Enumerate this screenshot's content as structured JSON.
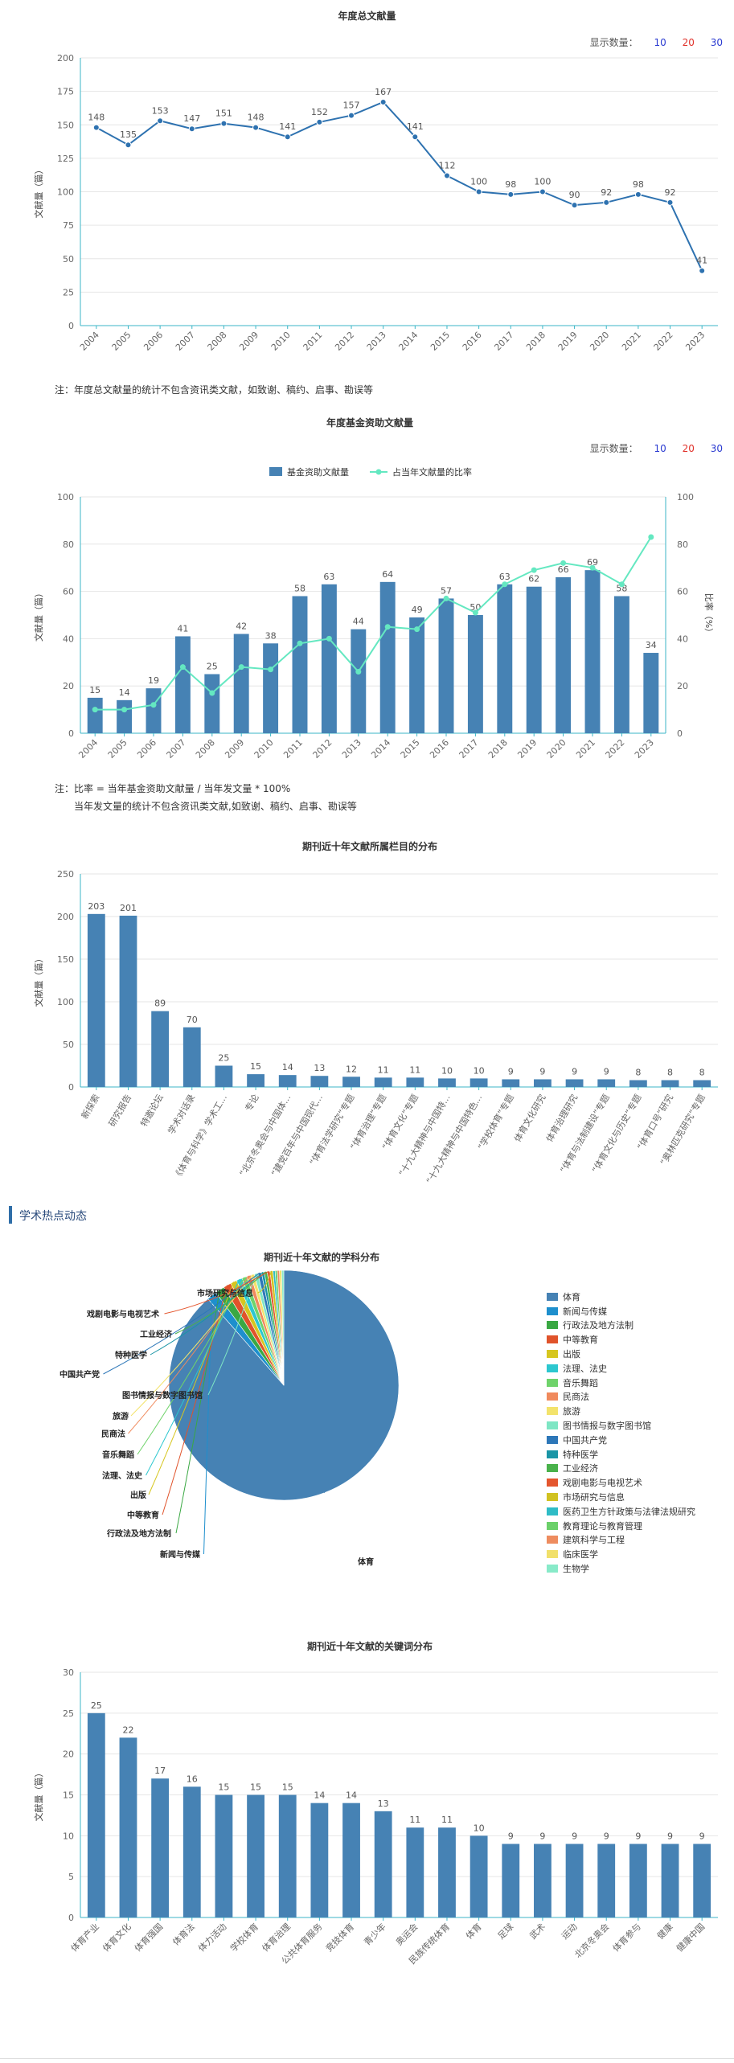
{
  "controls": {
    "count_label": "显示数量：",
    "counts": [
      "10",
      "20",
      "30"
    ],
    "count_colors": [
      "#2b3bd1",
      "#e0322b",
      "#2b3bd1"
    ]
  },
  "notes": {
    "annual": "注：年度总文献量的统计不包含资讯类文献，如致谢、稿约、启事、勘误等",
    "fund_1": "注：比率 = 当年基金资助文献量 / 当年发文量 * 100%",
    "fund_2": "当年发文量的统计不包含资讯类文献,如致谢、稿约、启事、勘误等"
  },
  "section": {
    "title": "学术热点动态"
  },
  "colors": {
    "line": "#2e72b0",
    "bar": "#4682b4",
    "ratio_line": "#64e8c1"
  },
  "chart_data": [
    {
      "id": "annual",
      "type": "line",
      "title": "年度总文献量",
      "ylabel": "文献量（篇）",
      "ylim": [
        0,
        200
      ],
      "yticks": [
        0,
        25,
        50,
        75,
        100,
        125,
        150,
        175,
        200
      ],
      "x": [
        "2004",
        "2005",
        "2006",
        "2007",
        "2008",
        "2009",
        "2010",
        "2011",
        "2012",
        "2013",
        "2014",
        "2015",
        "2016",
        "2017",
        "2018",
        "2019",
        "2020",
        "2021",
        "2022",
        "2023"
      ],
      "series": [
        {
          "values": [
            148,
            135,
            153,
            147,
            151,
            148,
            141,
            152,
            157,
            167,
            141,
            112,
            100,
            98,
            100,
            90,
            92,
            98,
            92,
            41
          ]
        }
      ]
    },
    {
      "id": "fund",
      "type": "bar",
      "title": "年度基金资助文献量",
      "ylabel": "文献量（篇）",
      "y2label": "比率（%）",
      "ylim": [
        0,
        100
      ],
      "y2lim": [
        0,
        100
      ],
      "yticks": [
        0,
        20,
        40,
        60,
        80,
        100
      ],
      "x": [
        "2004",
        "2005",
        "2006",
        "2007",
        "2008",
        "2009",
        "2010",
        "2011",
        "2012",
        "2013",
        "2014",
        "2015",
        "2016",
        "2017",
        "2018",
        "2019",
        "2020",
        "2021",
        "2022",
        "2023"
      ],
      "series": [
        {
          "name": "基金资助文献量",
          "type": "bar",
          "values": [
            15,
            14,
            19,
            41,
            25,
            42,
            38,
            58,
            63,
            44,
            64,
            49,
            57,
            50,
            63,
            62,
            66,
            69,
            58,
            34
          ]
        },
        {
          "name": "占当年文献量的比率",
          "type": "line",
          "axis": "right",
          "values": [
            10,
            10,
            12,
            28,
            17,
            28,
            27,
            38,
            40,
            26,
            45,
            44,
            57,
            51,
            63,
            69,
            72,
            70,
            63,
            83
          ]
        }
      ]
    },
    {
      "id": "column",
      "type": "bar",
      "title": "期刊近十年文献所属栏目的分布",
      "ylabel": "文献量（篇）",
      "ylim": [
        0,
        250
      ],
      "yticks": [
        0,
        50,
        100,
        150,
        200,
        250
      ],
      "categories": [
        "新探索",
        "研究报告",
        "特邀论坛",
        "学术对话录",
        "《体育与科学》学术工...",
        "专论",
        "“北京冬奥会与中国体...",
        "“建党百年与中国现代...",
        "“体育法学研究”专题",
        "“体育治理”专题",
        "“体育文化”专题",
        "“十九大精神与中国特...",
        "“十九大精神与中国特色...",
        "“学校体育”专题",
        "体育文化研究",
        "体育治理研究",
        "“体育与法制建设”专题",
        "“体育文化与历史”专题",
        "“体育口号”研究",
        "“奥林匹克研究”专题"
      ],
      "series": [
        {
          "values": [
            203,
            201,
            89,
            70,
            25,
            15,
            14,
            13,
            12,
            11,
            11,
            10,
            10,
            9,
            9,
            9,
            9,
            8,
            8,
            8
          ]
        }
      ]
    },
    {
      "id": "subject",
      "type": "pie",
      "title": "期刊近十年文献的学科分布",
      "categories": [
        "体育",
        "新闻与传媒",
        "行政法及地方法制",
        "中等教育",
        "出版",
        "法理、法史",
        "音乐舞蹈",
        "民商法",
        "旅游",
        "图书情报与数字图书馆",
        "中国共产党",
        "特种医学",
        "工业经济",
        "戏剧电影与电视艺术",
        "市场研究与信息",
        "医药卫生方针政策与法律法规研究",
        "教育理论与教育管理",
        "建筑科学与工程",
        "临床医学",
        "生物学"
      ],
      "values": [
        880,
        14,
        13,
        11,
        9,
        8,
        7,
        6,
        5,
        5,
        5,
        4,
        4,
        4,
        4,
        3,
        3,
        3,
        3,
        3
      ],
      "colors": [
        "#4682b4",
        "#1e8fcd",
        "#3aa843",
        "#e0532b",
        "#d6c61f",
        "#2cc7cf",
        "#6fd36b",
        "#f08a5d",
        "#f3e36c",
        "#7ee6c4",
        "#2d77b8",
        "#1a95a6",
        "#49b24b",
        "#e4562e",
        "#d1c221",
        "#2fbcc6",
        "#6bd06a",
        "#ee8c5f",
        "#f1e06a",
        "#88eac9"
      ]
    },
    {
      "id": "keyword",
      "type": "bar",
      "title": "期刊近十年文献的关键词分布",
      "ylabel": "文献量（篇）",
      "ylim": [
        0,
        30
      ],
      "yticks": [
        0,
        5,
        10,
        15,
        20,
        25,
        30
      ],
      "categories": [
        "体育产业",
        "体育文化",
        "体育强国",
        "体育法",
        "体力活动",
        "学校体育",
        "体育治理",
        "公共体育服务",
        "竞技体育",
        "青少年",
        "奥运会",
        "民族传统体育",
        "体育",
        "足球",
        "武术",
        "运动",
        "北京冬奥会",
        "体育参与",
        "健康",
        "健康中国"
      ],
      "series": [
        {
          "values": [
            25,
            22,
            17,
            16,
            15,
            15,
            15,
            14,
            14,
            13,
            11,
            11,
            10,
            9,
            9,
            9,
            9,
            9,
            9,
            9
          ]
        }
      ]
    }
  ]
}
